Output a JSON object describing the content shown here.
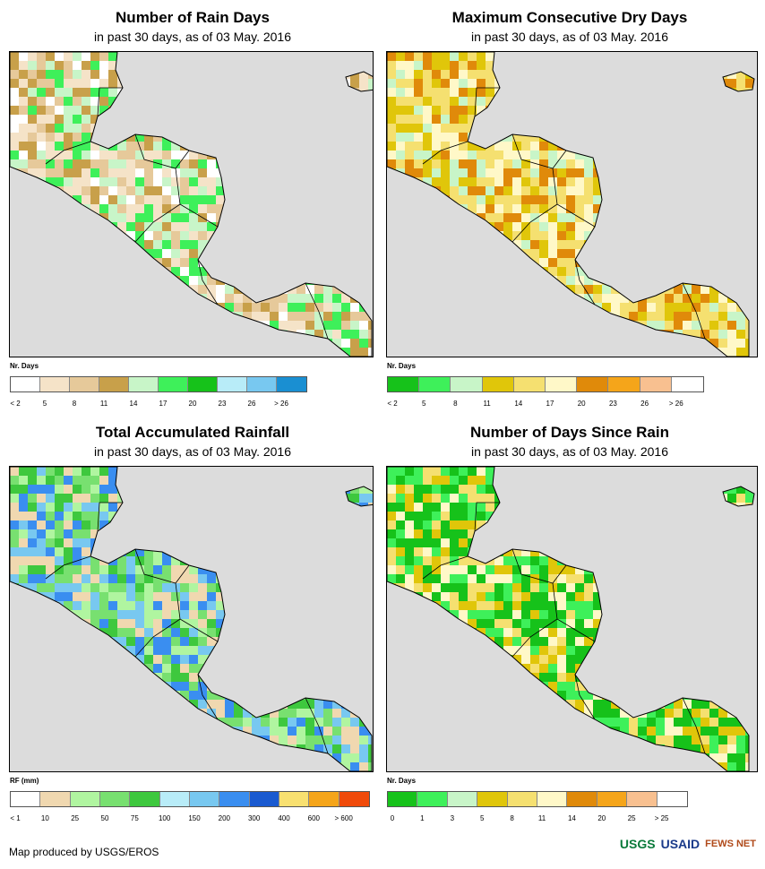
{
  "panels": [
    {
      "title": "Number of Rain Days",
      "subtitle": "in past 30 days, as of 03 May. 2016",
      "legend_label": "Nr. Days",
      "legend_colors": [
        "#ffffff",
        "#f5e3c8",
        "#e6c99a",
        "#c8a04a",
        "#c8f5c8",
        "#3ef05a",
        "#16c21a",
        "#b8ecf8",
        "#78c8f0",
        "#1a8fd2"
      ],
      "tick_labels": [
        "< 2",
        "5",
        "8",
        "11",
        "14",
        "17",
        "20",
        "23",
        "26",
        "> 26"
      ],
      "palette": [
        "#f5e3c8",
        "#e6c99a",
        "#c8a04a",
        "#ffffff",
        "#3ef05a",
        "#c8f5c8"
      ]
    },
    {
      "title": "Maximum Consecutive Dry Days",
      "subtitle": "in past 30 days, as of 03 May. 2016",
      "legend_label": "Nr. Days",
      "legend_colors": [
        "#16c21a",
        "#3ef05a",
        "#c8f5c8",
        "#e0c60a",
        "#f5e070",
        "#fff8c8",
        "#e08a0a",
        "#f5a51a",
        "#f8c090",
        "#ffffff"
      ],
      "tick_labels": [
        "< 2",
        "5",
        "8",
        "11",
        "14",
        "17",
        "20",
        "23",
        "26",
        "> 26"
      ],
      "palette": [
        "#f5e070",
        "#fff8c8",
        "#e0c60a",
        "#c8f5c8",
        "#e08a0a",
        "#f5e070"
      ]
    },
    {
      "title": "Total Accumulated Rainfall",
      "subtitle": "in past 30 days, as of 03 May. 2016",
      "legend_label": "RF (mm)",
      "legend_colors": [
        "#ffffff",
        "#f0d8b0",
        "#b0f5a0",
        "#78e070",
        "#3ec83e",
        "#b8ecf8",
        "#78c8f0",
        "#3a8ef0",
        "#1a5ad0",
        "#f8e070",
        "#f5a51a",
        "#f04a0a"
      ],
      "tick_labels": [
        "< 1",
        "10",
        "25",
        "50",
        "75",
        "100",
        "150",
        "200",
        "300",
        "400",
        "600",
        "> 600"
      ],
      "palette": [
        "#78e070",
        "#b0f5a0",
        "#3ec83e",
        "#78c8f0",
        "#3a8ef0",
        "#f0d8b0"
      ]
    },
    {
      "title": "Number of Days Since Rain",
      "subtitle": "in past 30 days, as of 03 May. 2016",
      "legend_label": "Nr. Days",
      "legend_colors": [
        "#16c21a",
        "#3ef05a",
        "#c8f5c8",
        "#e0c60a",
        "#f5e070",
        "#fff8c8",
        "#e08a0a",
        "#f5a51a",
        "#f8c090",
        "#ffffff"
      ],
      "tick_labels": [
        "0",
        "1",
        "3",
        "5",
        "8",
        "11",
        "14",
        "20",
        "25",
        "> 25"
      ],
      "palette": [
        "#16c21a",
        "#3ef05a",
        "#f5e070",
        "#fff8c8",
        "#16c21a",
        "#e0c60a"
      ]
    }
  ],
  "footer": "Map produced by USGS/EROS",
  "logos": [
    "USGS",
    "USAID",
    "FEWS NET"
  ],
  "colors": {
    "ocean": "#dcdcdc",
    "border": "#000000"
  }
}
